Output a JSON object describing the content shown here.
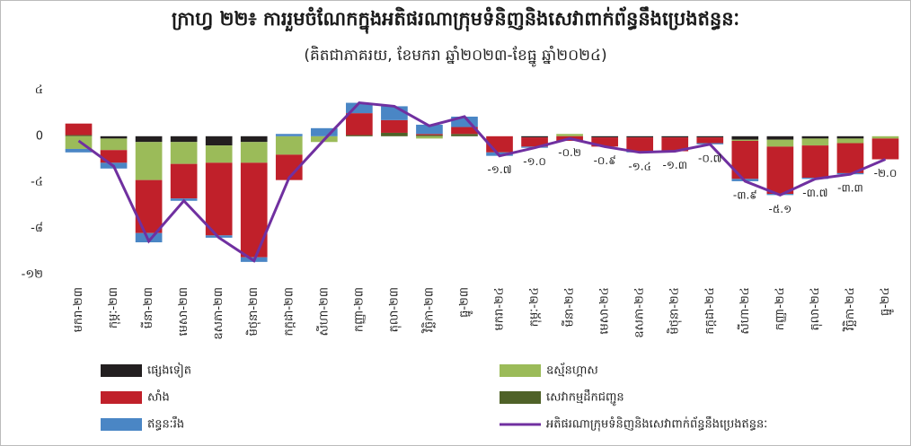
{
  "chart_data": {
    "type": "stacked-bar-line",
    "title": "ក្រាហ្វ ២២៖ ការរួមចំណែកក្នុងអតិផរណាក្រុមទំនិញនិងសេវាពាក់ព័ន្ធនឹងប្រេងឥន្ធនៈ",
    "subtitle": "(គិតជាភាគរយ, ខែមករា ឆ្នាំ២០២៣-ខែធ្នូ ឆ្នាំ២០២៤)",
    "categories": [
      "មករា-២៣",
      "កុម្ភៈ-២៣",
      "មីនា-២៣",
      "មេសា-២៣",
      "ឧសភា-២៣",
      "មិថុនា-២៣",
      "កក្កដា-២៣",
      "សីហា-២៣",
      "កញ្ញា-២៣",
      "តុលា-២៣",
      "វិច្ឆិកា-២៣",
      "ធ្នូ-២៣",
      "មករា-២៤",
      "កុម្ភៈ-២៤",
      "មីនា-២៤",
      "មេសា-២៤",
      "ឧសភា-២៤",
      "មិថុនា-២៤",
      "កក្កដា-២៤",
      "សីហា-២៤",
      "កញ្ញា-២៤",
      "តុលា-២៤",
      "វិច្ឆិកា-២៤",
      "ធ្នូ-២៤"
    ],
    "series": [
      {
        "name": "ផ្សេងទៀត",
        "color": "#231f20",
        "values": [
          0,
          -0.2,
          -0.5,
          -0.5,
          -0.8,
          -0.5,
          0,
          0,
          0,
          0,
          0,
          0,
          0,
          -0.1,
          0,
          -0.1,
          -0.1,
          -0.1,
          -0.1,
          -0.3,
          -0.3,
          -0.2,
          -0.2,
          0
        ]
      },
      {
        "name": "សេវាកម្មដឹកជញ្ជូន",
        "color": "#4f6228",
        "values": [
          0.1,
          0,
          0,
          0,
          0,
          0,
          0,
          0,
          0.1,
          0.3,
          0.1,
          0.2,
          0,
          0,
          0,
          0,
          0,
          0,
          0,
          0,
          0,
          0,
          0,
          0
        ]
      },
      {
        "name": "ឧស្ម័នហ្គាស",
        "color": "#9bbb59",
        "values": [
          -1.1,
          -1.0,
          -3.3,
          -1.9,
          -1.5,
          -1.8,
          -1.6,
          -0.5,
          0,
          0,
          -0.2,
          0,
          0,
          0,
          0.2,
          0,
          0,
          0,
          0,
          -0.1,
          -0.6,
          -0.6,
          -0.4,
          -0.2
        ]
      },
      {
        "name": "សាំង",
        "color": "#c0202a",
        "values": [
          1.0,
          -1.1,
          -4.6,
          -3.0,
          -6.3,
          -8.2,
          -2.2,
          0,
          1.9,
          1.1,
          0.1,
          0.6,
          -1.4,
          -0.8,
          -0.4,
          -0.8,
          -1.2,
          -1.2,
          -0.5,
          -3.3,
          -4.1,
          -2.8,
          -2.6,
          -1.8
        ]
      },
      {
        "name": "ឥន្ធនៈរឹង",
        "color": "#4a86c5",
        "values": [
          -0.3,
          -0.5,
          -0.8,
          -0.2,
          -0.2,
          -0.4,
          0.2,
          0.7,
          0.9,
          1.2,
          0.8,
          0.9,
          -0.3,
          -0.1,
          0,
          0,
          -0.1,
          0,
          -0.1,
          -0.2,
          -0.1,
          -0.1,
          -0.1,
          0
        ]
      },
      {
        "name": "អតិផរណាក្រុមទំនិញនិងសេវាពាក់ព័ន្ធនឹងប្រេងឥន្ធនៈ",
        "color": "#7030a0",
        "kind": "line",
        "values": [
          -0.4,
          -2.6,
          -9.1,
          -5.6,
          -8.8,
          -10.8,
          -3.6,
          -0.3,
          2.9,
          2.6,
          0.9,
          1.7,
          -1.7,
          -1.0,
          -0.2,
          -0.9,
          -1.4,
          -1.3,
          -0.7,
          -3.9,
          -5.1,
          -3.7,
          -3.3,
          -2.0
        ],
        "value_labels": [
          null,
          null,
          null,
          null,
          null,
          null,
          null,
          null,
          null,
          null,
          null,
          null,
          "-១.៧",
          "-១.០",
          "-០.២",
          "-០.៩",
          "-១.៤",
          "-១.៣",
          "-០.៧",
          "-៣.៩",
          "-៥.១",
          "-៣.៧",
          "-៣.៣",
          "-២.០"
        ]
      }
    ],
    "ylim": [
      -12,
      4.5
    ],
    "yticks": [
      {
        "value": 4,
        "label": "៤"
      },
      0,
      {
        "value": -4,
        "label": "-៤"
      },
      {
        "value": -8,
        "label": "-៨"
      },
      {
        "value": -12,
        "label": "-១២"
      }
    ],
    "legend": "bottom"
  }
}
